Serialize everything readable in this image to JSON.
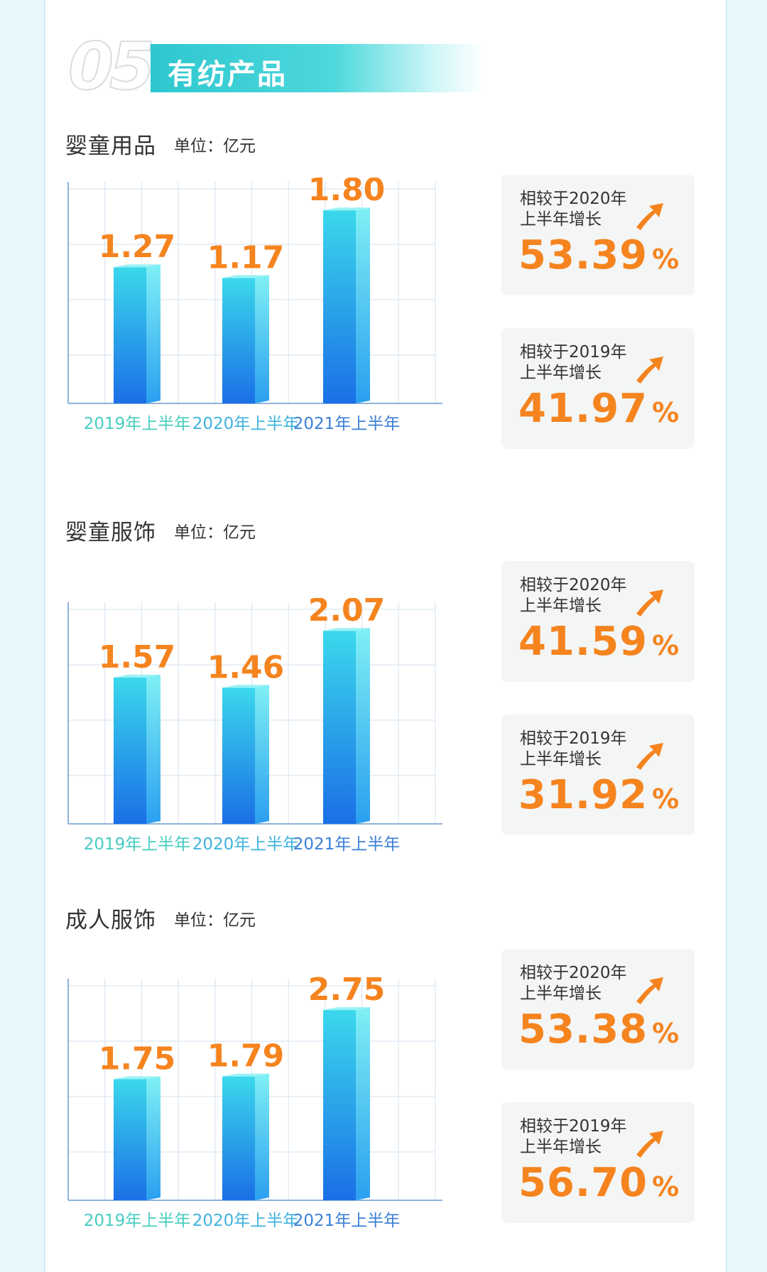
{
  "section": {
    "number": "05",
    "title": "有纺产品"
  },
  "colors": {
    "accent": "#f5841f",
    "teal": "#2ec7cf",
    "bar_top": "#3ee0ee",
    "bar_bottom": "#1a6fe6"
  },
  "chart_data": [
    {
      "type": "bar",
      "title": "婴童用品",
      "unit": "单位：亿元",
      "categories": [
        "2019年上半年",
        "2020年上半年",
        "2021年上半年"
      ],
      "values": [
        1.27,
        1.17,
        1.8
      ],
      "value_labels": [
        "1.27",
        "1.17",
        "1.80"
      ],
      "ylim": [
        0,
        2.0
      ],
      "grid": true
    },
    {
      "type": "bar",
      "title": "婴童服饰",
      "unit": "单位：亿元",
      "categories": [
        "2019年上半年",
        "2020年上半年",
        "2021年上半年"
      ],
      "values": [
        1.57,
        1.46,
        2.07
      ],
      "value_labels": [
        "1.57",
        "1.46",
        "2.07"
      ],
      "ylim": [
        0,
        2.3
      ],
      "grid": true
    },
    {
      "type": "bar",
      "title": "成人服饰",
      "unit": "单位：亿元",
      "categories": [
        "2019年上半年",
        "2020年上半年",
        "2021年上半年"
      ],
      "values": [
        1.75,
        1.79,
        2.75
      ],
      "value_labels": [
        "1.75",
        "1.79",
        "2.75"
      ],
      "ylim": [
        0,
        3.1
      ],
      "grid": true
    }
  ],
  "stats": [
    [
      {
        "label": "相较于2020年\n上半年增长",
        "value": "53.39",
        "unit": "%"
      },
      {
        "label": "相较于2019年\n上半年增长",
        "value": "41.97",
        "unit": "%"
      }
    ],
    [
      {
        "label": "相较于2020年\n上半年增长",
        "value": "41.59",
        "unit": "%"
      },
      {
        "label": "相较于2019年\n上半年增长",
        "value": "31.92",
        "unit": "%"
      }
    ],
    [
      {
        "label": "相较于2020年\n上半年增长",
        "value": "53.38",
        "unit": "%"
      },
      {
        "label": "相较于2019年\n上半年增长",
        "value": "56.70",
        "unit": "%"
      }
    ]
  ]
}
